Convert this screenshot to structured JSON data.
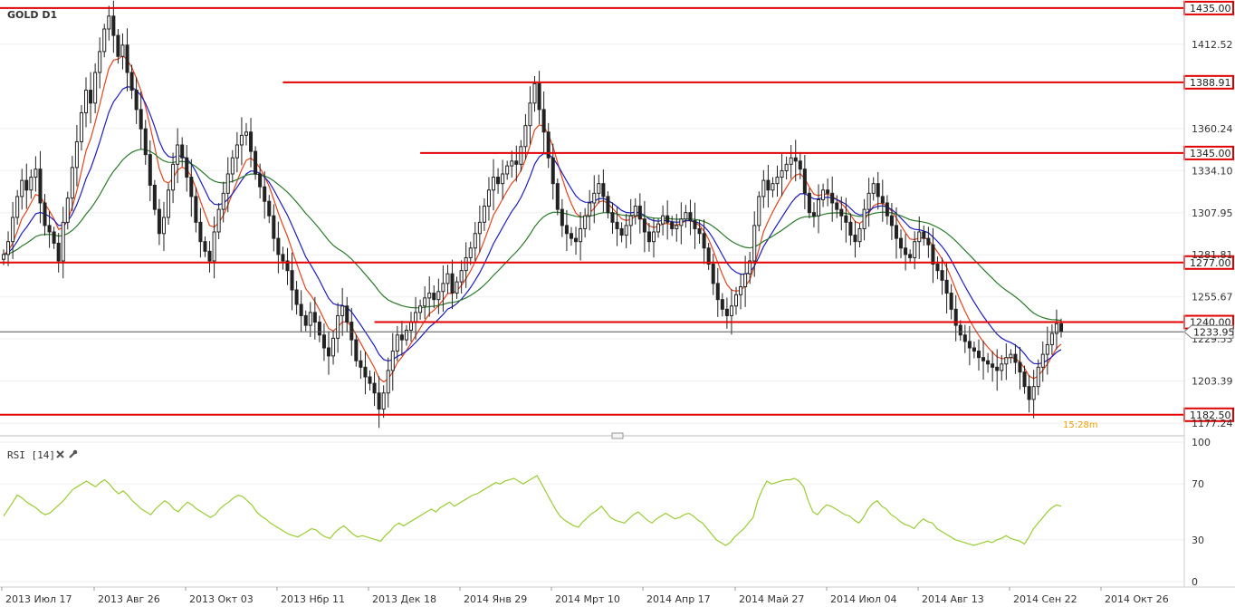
{
  "chart_data": [
    {
      "type": "candlestick",
      "title": "GOLD D1",
      "ylim": [
        1170,
        1440
      ],
      "y_ticks": [
        "1412.52",
        "1360.24",
        "1334.10",
        "1307.95",
        "1281.81",
        "1255.67",
        "1229.53",
        "1203.39",
        "1177.24"
      ],
      "y_tick_values": [
        1412.52,
        1360.24,
        1334.1,
        1307.95,
        1281.81,
        1255.67,
        1229.53,
        1203.39,
        1177.24
      ],
      "x_ticks": [
        "2013 Июл 17",
        "2013 Авг 26",
        "2013 Окт 03",
        "2013 Нбр 11",
        "2013 Дек 18",
        "2014 Янв 29",
        "2014 Мрт 10",
        "2014 Апр 17",
        "2014 Май 27",
        "2014 Июл 04",
        "2014 Авг 13",
        "2014 Сен 22",
        "2014 Окт 26"
      ],
      "current_price": "1233.95",
      "current_price_value": 1233.95,
      "timer_label": "15:28m",
      "horizontal_levels": [
        {
          "label": "1435.00",
          "value": 1435.0,
          "start_index": 0
        },
        {
          "label": "1388.91",
          "value": 1388.91,
          "start_index": 61
        },
        {
          "label": "1345.00",
          "value": 1345.0,
          "start_index": 91
        },
        {
          "label": "1277.00",
          "value": 1277.0,
          "start_index": 0
        },
        {
          "label": "1240.00",
          "value": 1240.0,
          "start_index": 81
        },
        {
          "label": "1182.50",
          "value": 1182.5,
          "start_index": 0
        }
      ],
      "close_series": [
        1282,
        1290,
        1305,
        1318,
        1328,
        1322,
        1330,
        1335,
        1314,
        1300,
        1296,
        1289,
        1278,
        1302,
        1317,
        1336,
        1352,
        1370,
        1384,
        1376,
        1395,
        1408,
        1422,
        1430,
        1418,
        1405,
        1412,
        1395,
        1384,
        1372,
        1360,
        1344,
        1325,
        1310,
        1295,
        1305,
        1322,
        1338,
        1350,
        1342,
        1330,
        1318,
        1302,
        1290,
        1284,
        1278,
        1296,
        1310,
        1320,
        1332,
        1342,
        1350,
        1356,
        1358,
        1346,
        1332,
        1324,
        1315,
        1306,
        1292,
        1282,
        1278,
        1272,
        1260,
        1251,
        1244,
        1238,
        1246,
        1240,
        1232,
        1224,
        1219,
        1230,
        1244,
        1250,
        1240,
        1229,
        1216,
        1212,
        1206,
        1202,
        1196,
        1186,
        1196,
        1210,
        1222,
        1232,
        1229,
        1235,
        1240,
        1246,
        1250,
        1255,
        1258,
        1254,
        1259,
        1264,
        1270,
        1258,
        1265,
        1272,
        1280,
        1286,
        1295,
        1302,
        1312,
        1322,
        1330,
        1326,
        1332,
        1337,
        1340,
        1338,
        1349,
        1362,
        1376,
        1388,
        1372,
        1358,
        1342,
        1326,
        1310,
        1300,
        1295,
        1292,
        1290,
        1298,
        1306,
        1314,
        1320,
        1326,
        1318,
        1308,
        1302,
        1298,
        1294,
        1300,
        1306,
        1312,
        1304,
        1296,
        1290,
        1296,
        1301,
        1306,
        1302,
        1298,
        1300,
        1304,
        1308,
        1303,
        1298,
        1295,
        1286,
        1276,
        1264,
        1254,
        1248,
        1244,
        1250,
        1257,
        1262,
        1270,
        1278,
        1300,
        1318,
        1328,
        1322,
        1326,
        1330,
        1334,
        1338,
        1342,
        1340,
        1335,
        1320,
        1308,
        1306,
        1316,
        1322,
        1320,
        1314,
        1310,
        1306,
        1302,
        1294,
        1290,
        1298,
        1310,
        1320,
        1326,
        1318,
        1314,
        1306,
        1300,
        1292,
        1286,
        1282,
        1280,
        1290,
        1296,
        1292,
        1288,
        1276,
        1272,
        1266,
        1258,
        1248,
        1238,
        1232,
        1228,
        1224,
        1222,
        1218,
        1216,
        1214,
        1212,
        1210,
        1214,
        1218,
        1220,
        1215,
        1209,
        1200,
        1192,
        1200,
        1212,
        1220,
        1226,
        1233,
        1239,
        1234
      ],
      "ema_fast": {
        "color": "#e8431a"
      },
      "ema_mid": {
        "color": "#1c1cc8"
      },
      "ema_slow": {
        "color": "#2a7a2a"
      },
      "level_color": "#e00000",
      "candle_color": "#222222"
    },
    {
      "type": "line",
      "title": "RSI [14]",
      "ylim": [
        0,
        100
      ],
      "y_ticks": [
        "100",
        "70",
        "30",
        "0"
      ],
      "y_tick_values": [
        100,
        70,
        30,
        0
      ],
      "series_color": "#9acd32",
      "values": [
        47,
        52,
        57,
        62,
        60,
        57,
        55,
        53,
        50,
        48,
        49,
        52,
        55,
        58,
        62,
        66,
        68,
        70,
        72,
        70,
        68,
        71,
        73,
        70,
        66,
        63,
        65,
        62,
        58,
        55,
        52,
        50,
        48,
        52,
        55,
        58,
        56,
        52,
        50,
        54,
        57,
        55,
        52,
        50,
        48,
        46,
        48,
        52,
        55,
        57,
        60,
        62,
        61,
        58,
        55,
        50,
        47,
        45,
        42,
        40,
        38,
        36,
        34,
        33,
        32,
        34,
        36,
        38,
        37,
        34,
        32,
        31,
        35,
        38,
        40,
        37,
        34,
        32,
        33,
        32,
        31,
        30,
        29,
        33,
        36,
        40,
        42,
        40,
        42,
        44,
        46,
        48,
        50,
        52,
        50,
        53,
        55,
        57,
        54,
        56,
        58,
        60,
        62,
        63,
        65,
        67,
        69,
        71,
        70,
        72,
        73,
        74,
        72,
        70,
        72,
        74,
        76,
        70,
        64,
        58,
        52,
        47,
        44,
        42,
        40,
        39,
        43,
        46,
        49,
        51,
        54,
        50,
        46,
        44,
        43,
        42,
        45,
        48,
        50,
        47,
        44,
        42,
        45,
        47,
        49,
        47,
        45,
        46,
        48,
        49,
        47,
        44,
        42,
        38,
        34,
        30,
        28,
        26,
        28,
        32,
        35,
        38,
        42,
        46,
        58,
        66,
        72,
        70,
        71,
        72,
        73,
        73,
        74,
        72,
        68,
        58,
        50,
        48,
        52,
        55,
        54,
        52,
        50,
        48,
        47,
        44,
        42,
        46,
        52,
        56,
        58,
        54,
        52,
        48,
        46,
        43,
        41,
        40,
        38,
        42,
        45,
        43,
        42,
        38,
        36,
        34,
        32,
        30,
        29,
        28,
        27,
        26,
        27,
        28,
        29,
        28,
        30,
        31,
        33,
        31,
        30,
        29,
        27,
        32,
        38,
        42,
        46,
        50,
        53,
        55,
        54
      ]
    }
  ]
}
